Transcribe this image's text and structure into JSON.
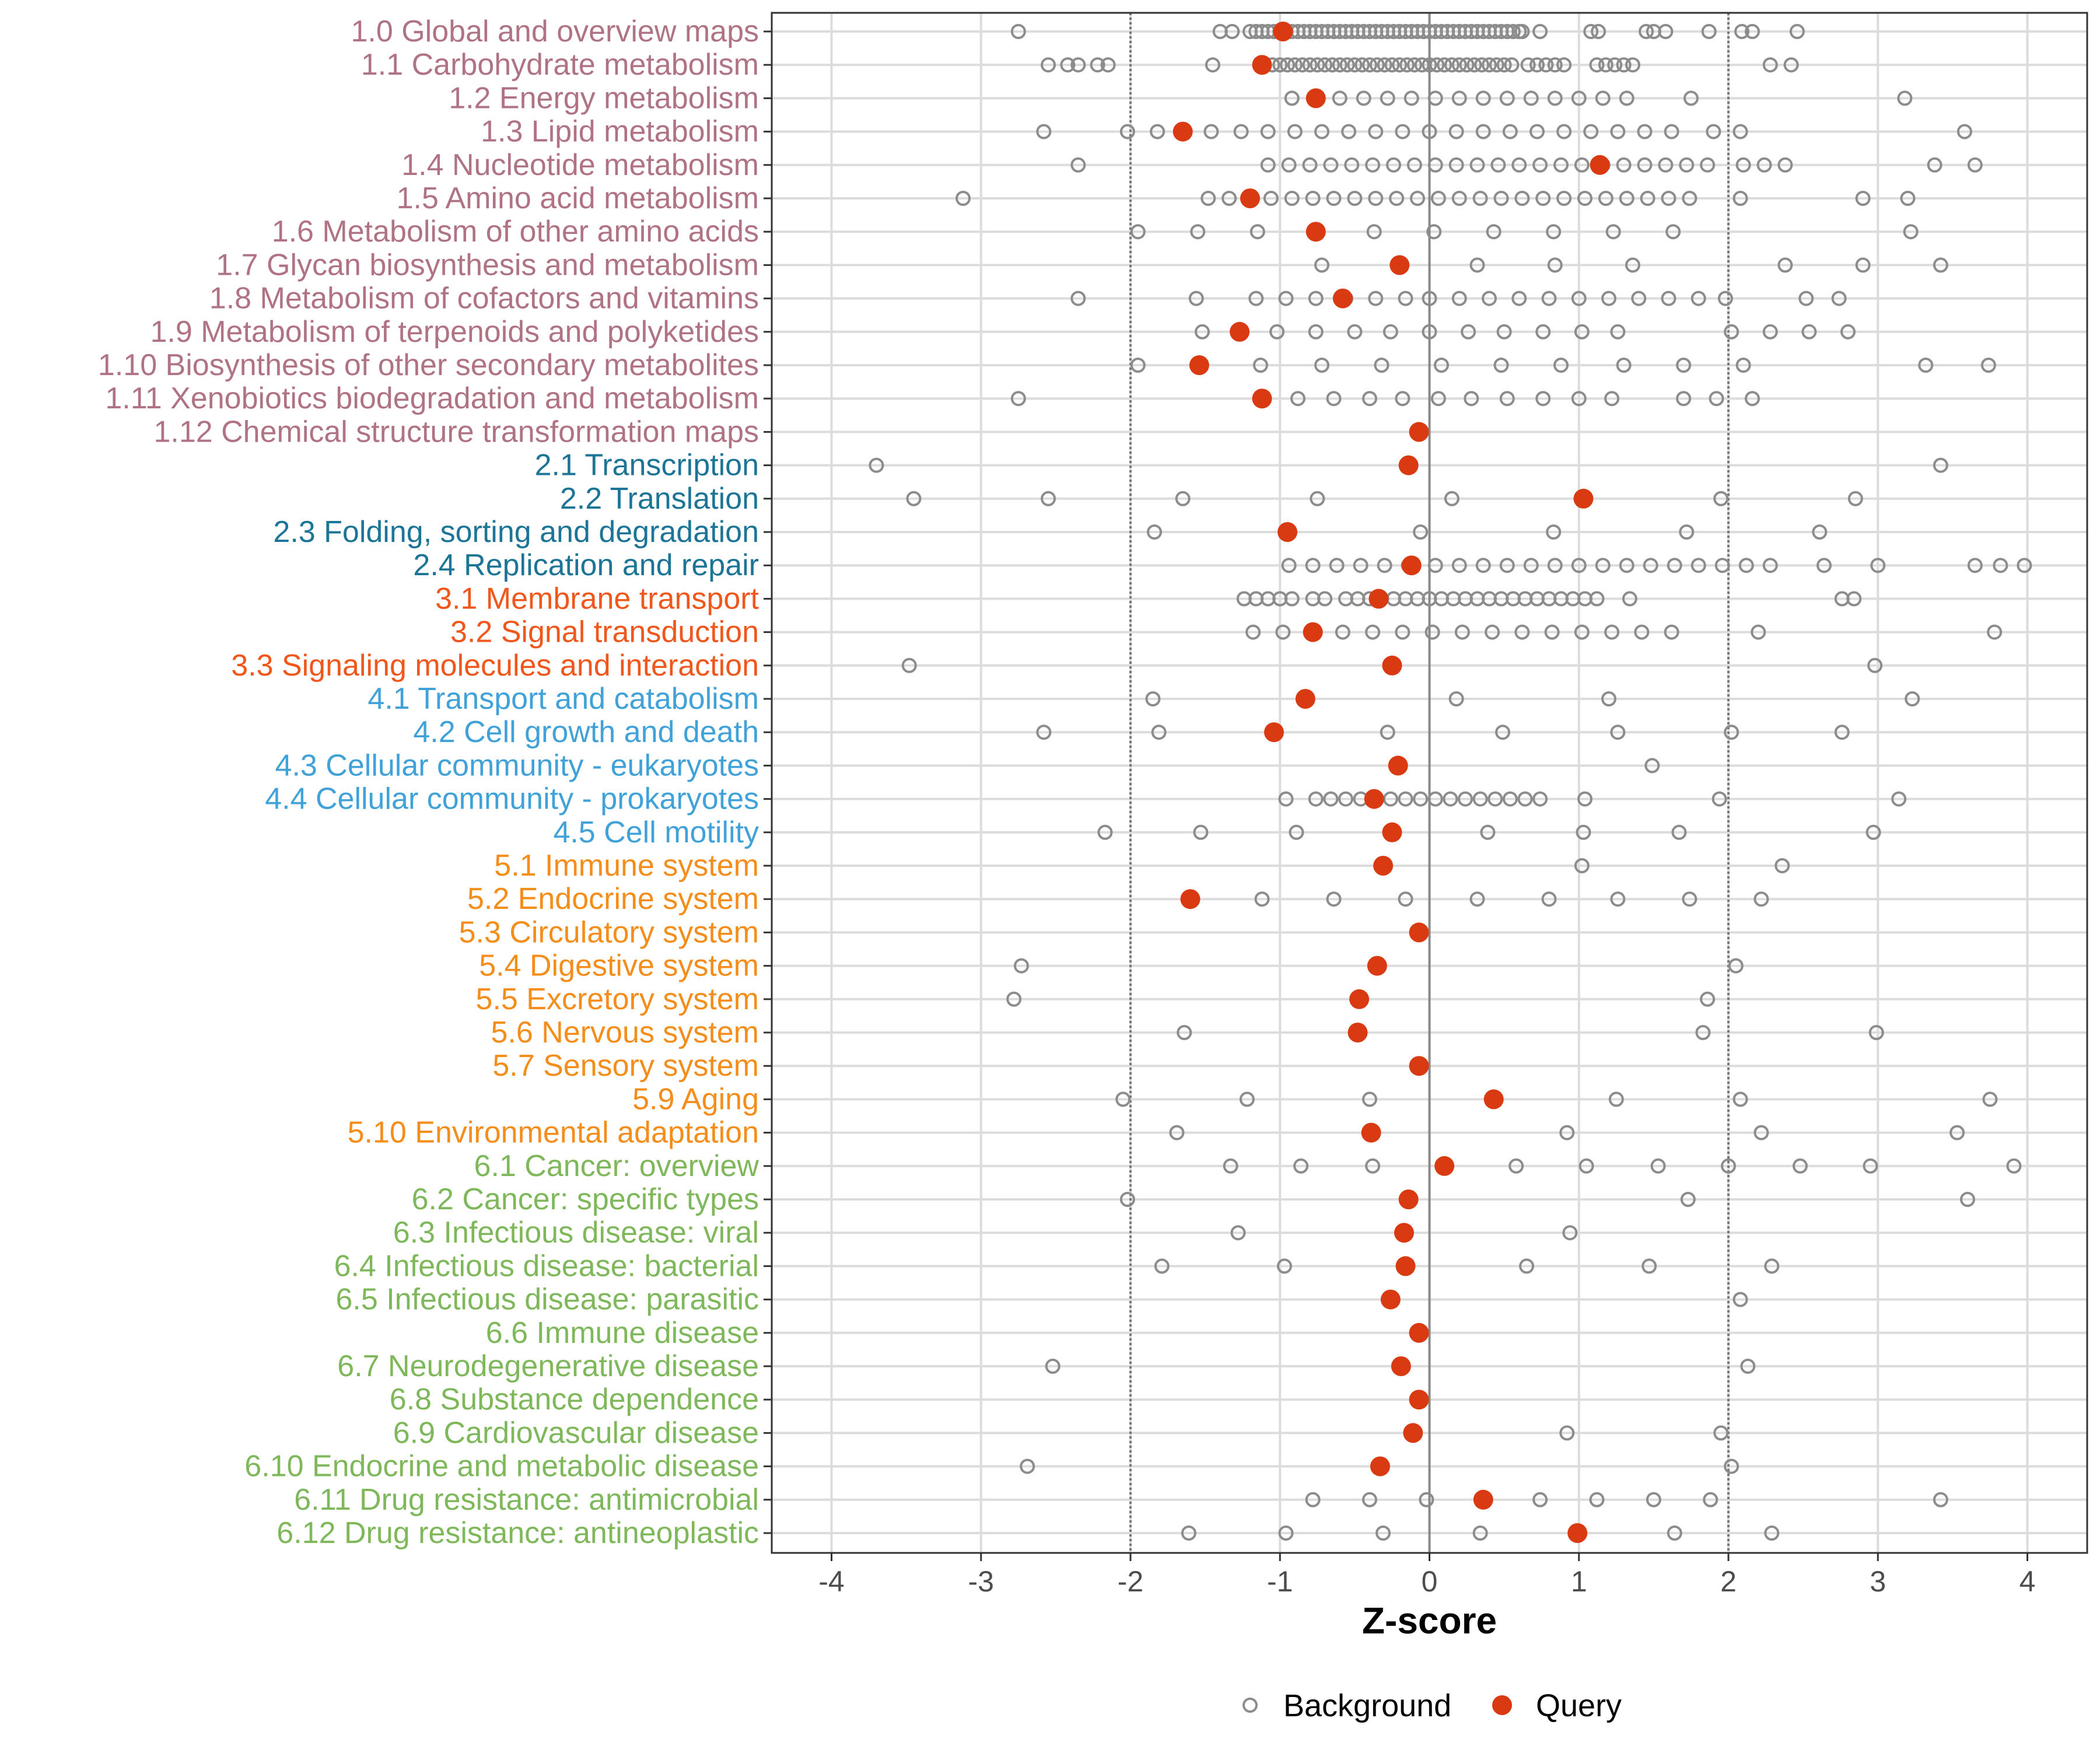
{
  "chart_data": {
    "type": "scatter",
    "xlabel": "Z-score",
    "xlim": [
      -4.4,
      4.4
    ],
    "xticks": [
      -4,
      -3,
      -2,
      -1,
      0,
      1,
      2,
      3,
      4
    ],
    "xtick_labels": [
      "-4",
      "-3",
      "-2",
      "-1",
      "0",
      "1",
      "2",
      "3",
      "4"
    ],
    "reference_lines": [
      -2,
      0,
      2
    ],
    "legend": [
      {
        "name": "Background",
        "marker": "open-circle",
        "color": "#8c8c8c"
      },
      {
        "name": "Query",
        "marker": "filled-circle",
        "color": "#d93a11"
      }
    ],
    "group_colors": {
      "1": "#b07384",
      "2": "#1c7596",
      "3": "#f0571c",
      "4": "#40a2d8",
      "5": "#f58d1b",
      "6": "#7eb85a"
    },
    "categories": [
      {
        "label": "1.0 Global and overview maps",
        "group": "1",
        "query": -0.98,
        "background": [
          -2.75,
          -1.4,
          -1.32,
          -1.2,
          -1.16,
          -1.12,
          -1.08,
          -1.04,
          -1.0,
          -0.96,
          -0.92,
          -0.88,
          -0.84,
          -0.8,
          -0.76,
          -0.72,
          -0.68,
          -0.64,
          -0.6,
          -0.56,
          -0.52,
          -0.48,
          -0.44,
          -0.4,
          -0.36,
          -0.32,
          -0.28,
          -0.24,
          -0.2,
          -0.16,
          -0.12,
          -0.08,
          -0.04,
          0.0,
          0.04,
          0.08,
          0.12,
          0.16,
          0.2,
          0.24,
          0.28,
          0.32,
          0.36,
          0.4,
          0.44,
          0.48,
          0.52,
          0.56,
          0.6,
          0.62,
          0.74,
          1.08,
          1.13,
          1.45,
          1.5,
          1.58,
          1.87,
          2.09,
          2.16,
          2.46
        ]
      },
      {
        "label": "1.1 Carbohydrate metabolism",
        "group": "1",
        "query": -1.12,
        "background": [
          -2.55,
          -2.42,
          -2.35,
          -2.22,
          -2.15,
          -1.45,
          -1.05,
          -1.0,
          -0.95,
          -0.9,
          -0.85,
          -0.8,
          -0.75,
          -0.7,
          -0.65,
          -0.6,
          -0.55,
          -0.5,
          -0.45,
          -0.4,
          -0.35,
          -0.3,
          -0.25,
          -0.2,
          -0.15,
          -0.1,
          -0.05,
          0.0,
          0.05,
          0.1,
          0.15,
          0.2,
          0.25,
          0.3,
          0.35,
          0.4,
          0.45,
          0.5,
          0.55,
          0.66,
          0.72,
          0.78,
          0.84,
          0.9,
          1.12,
          1.18,
          1.24,
          1.3,
          1.36,
          2.28,
          2.42
        ]
      },
      {
        "label": "1.2 Energy metabolism",
        "group": "1",
        "query": -0.76,
        "background": [
          -0.92,
          -0.76,
          -0.6,
          -0.44,
          -0.28,
          -0.12,
          0.04,
          0.2,
          0.36,
          0.52,
          0.68,
          0.84,
          1.0,
          1.16,
          1.32,
          1.75,
          3.18
        ]
      },
      {
        "label": "1.3 Lipid metabolism",
        "group": "1",
        "query": -1.65,
        "background": [
          -2.58,
          -2.02,
          -1.82,
          -1.46,
          -1.26,
          -1.08,
          -0.9,
          -0.72,
          -0.54,
          -0.36,
          -0.18,
          0.0,
          0.18,
          0.36,
          0.54,
          0.72,
          0.9,
          1.08,
          1.26,
          1.44,
          1.62,
          1.9,
          2.08,
          3.58
        ]
      },
      {
        "label": "1.4 Nucleotide metabolism",
        "group": "1",
        "query": 1.14,
        "background": [
          -2.35,
          -1.08,
          -0.94,
          -0.8,
          -0.66,
          -0.52,
          -0.38,
          -0.24,
          -0.1,
          0.04,
          0.18,
          0.32,
          0.46,
          0.6,
          0.74,
          0.88,
          1.02,
          1.16,
          1.3,
          1.44,
          1.58,
          1.72,
          1.86,
          2.1,
          2.24,
          2.38,
          3.38,
          3.65
        ]
      },
      {
        "label": "1.5 Amino acid metabolism",
        "group": "1",
        "query": -1.2,
        "background": [
          -3.12,
          -1.48,
          -1.34,
          -1.2,
          -1.06,
          -0.92,
          -0.78,
          -0.64,
          -0.5,
          -0.36,
          -0.22,
          -0.08,
          0.06,
          0.2,
          0.34,
          0.48,
          0.62,
          0.76,
          0.9,
          1.04,
          1.18,
          1.32,
          1.46,
          1.6,
          1.74,
          2.08,
          2.9,
          3.2
        ]
      },
      {
        "label": "1.6 Metabolism of other amino acids",
        "group": "1",
        "query": -0.76,
        "background": [
          -1.95,
          -1.55,
          -1.15,
          -0.75,
          -0.37,
          0.03,
          0.43,
          0.83,
          1.23,
          1.63,
          3.22
        ]
      },
      {
        "label": "1.7 Glycan biosynthesis and metabolism",
        "group": "1",
        "query": -0.2,
        "background": [
          -0.72,
          0.32,
          0.84,
          1.36,
          2.38,
          2.9,
          3.42
        ]
      },
      {
        "label": "1.8 Metabolism of cofactors and vitamins",
        "group": "1",
        "query": -0.58,
        "background": [
          -2.35,
          -1.56,
          -1.16,
          -0.96,
          -0.76,
          -0.56,
          -0.36,
          -0.16,
          0.0,
          0.2,
          0.4,
          0.6,
          0.8,
          1.0,
          1.2,
          1.4,
          1.6,
          1.8,
          1.98,
          2.52,
          2.74
        ]
      },
      {
        "label": "1.9 Metabolism of terpenoids and polyketides",
        "group": "1",
        "query": -1.27,
        "background": [
          -1.52,
          -1.02,
          -0.76,
          -0.5,
          -0.26,
          0.0,
          0.26,
          0.5,
          0.76,
          1.02,
          1.26,
          2.02,
          2.28,
          2.54,
          2.8
        ]
      },
      {
        "label": "1.10 Biosynthesis of other secondary metabolites",
        "group": "1",
        "query": -1.54,
        "background": [
          -1.95,
          -1.13,
          -0.72,
          -0.32,
          0.08,
          0.48,
          0.88,
          1.3,
          1.7,
          2.1,
          3.32,
          3.74
        ]
      },
      {
        "label": "1.11 Xenobiotics biodegradation and metabolism",
        "group": "1",
        "query": -1.12,
        "background": [
          -2.75,
          -0.88,
          -0.64,
          -0.4,
          -0.18,
          0.06,
          0.28,
          0.52,
          0.76,
          1.0,
          1.22,
          1.7,
          1.92,
          2.16
        ]
      },
      {
        "label": "1.12 Chemical structure transformation maps",
        "group": "1",
        "query": -0.07,
        "background": []
      },
      {
        "label": "2.1 Transcription",
        "group": "2",
        "query": -0.14,
        "background": [
          -3.7,
          3.42
        ]
      },
      {
        "label": "2.2 Translation",
        "group": "2",
        "query": 1.03,
        "background": [
          -3.45,
          -2.55,
          -1.65,
          -0.75,
          0.15,
          1.95,
          2.85
        ]
      },
      {
        "label": "2.3 Folding, sorting and degradation",
        "group": "2",
        "query": -0.95,
        "background": [
          -1.84,
          -0.06,
          0.83,
          1.72,
          2.61
        ]
      },
      {
        "label": "2.4 Replication and repair",
        "group": "2",
        "query": -0.12,
        "background": [
          -0.94,
          -0.78,
          -0.62,
          -0.46,
          -0.3,
          -0.14,
          0.04,
          0.2,
          0.36,
          0.52,
          0.68,
          0.84,
          1.0,
          1.16,
          1.32,
          1.48,
          1.64,
          1.8,
          1.96,
          2.12,
          2.28,
          2.64,
          3.0,
          3.65,
          3.82,
          3.98
        ]
      },
      {
        "label": "3.1 Membrane transport",
        "group": "3",
        "query": -0.34,
        "background": [
          -1.24,
          -1.16,
          -1.08,
          -1.0,
          -0.92,
          -0.78,
          -0.7,
          -0.56,
          -0.48,
          -0.4,
          -0.32,
          -0.24,
          -0.16,
          -0.08,
          0.0,
          0.08,
          0.16,
          0.24,
          0.32,
          0.4,
          0.48,
          0.56,
          0.64,
          0.72,
          0.8,
          0.88,
          0.96,
          1.04,
          1.12,
          1.34,
          2.76,
          2.84
        ]
      },
      {
        "label": "3.2 Signal transduction",
        "group": "3",
        "query": -0.78,
        "background": [
          -1.18,
          -0.98,
          -0.78,
          -0.58,
          -0.38,
          -0.18,
          0.02,
          0.22,
          0.42,
          0.62,
          0.82,
          1.02,
          1.22,
          1.42,
          1.62,
          2.2,
          3.78
        ]
      },
      {
        "label": "3.3 Signaling molecules and interaction",
        "group": "3",
        "query": -0.25,
        "background": [
          -3.48,
          2.98
        ]
      },
      {
        "label": "4.1 Transport and catabolism",
        "group": "4",
        "query": -0.83,
        "background": [
          -1.85,
          0.18,
          1.2,
          3.23
        ]
      },
      {
        "label": "4.2 Cell growth and death",
        "group": "4",
        "query": -1.04,
        "background": [
          -2.58,
          -1.81,
          -0.28,
          0.49,
          1.26,
          2.02,
          2.76
        ]
      },
      {
        "label": "4.3 Cellular community - eukaryotes",
        "group": "4",
        "query": -0.21,
        "background": [
          1.49
        ]
      },
      {
        "label": "4.4 Cellular community - prokaryotes",
        "group": "4",
        "query": -0.37,
        "background": [
          -0.96,
          -0.76,
          -0.66,
          -0.56,
          -0.46,
          -0.36,
          -0.26,
          -0.16,
          -0.06,
          0.04,
          0.14,
          0.24,
          0.34,
          0.44,
          0.54,
          0.64,
          0.74,
          1.04,
          1.94,
          3.14
        ]
      },
      {
        "label": "4.5 Cell motility",
        "group": "4",
        "query": -0.25,
        "background": [
          -2.17,
          -1.53,
          -0.89,
          0.39,
          1.03,
          1.67,
          2.97
        ]
      },
      {
        "label": "5.1 Immune system",
        "group": "5",
        "query": -0.31,
        "background": [
          1.02,
          2.36
        ]
      },
      {
        "label": "5.2 Endocrine system",
        "group": "5",
        "query": -1.6,
        "background": [
          -1.12,
          -0.64,
          -0.16,
          0.32,
          0.8,
          1.26,
          1.74,
          2.22
        ]
      },
      {
        "label": "5.3 Circulatory system",
        "group": "5",
        "query": -0.07,
        "background": []
      },
      {
        "label": "5.4 Digestive system",
        "group": "5",
        "query": -0.35,
        "background": [
          -2.73,
          2.05
        ]
      },
      {
        "label": "5.5 Excretory system",
        "group": "5",
        "query": -0.47,
        "background": [
          -2.78,
          1.86
        ]
      },
      {
        "label": "5.6 Nervous system",
        "group": "5",
        "query": -0.48,
        "background": [
          -1.64,
          1.83,
          2.99
        ]
      },
      {
        "label": "5.7 Sensory system",
        "group": "5",
        "query": -0.07,
        "background": []
      },
      {
        "label": "5.9 Aging",
        "group": "5",
        "query": 0.43,
        "background": [
          -2.05,
          -1.22,
          -0.4,
          1.25,
          2.08,
          3.75
        ]
      },
      {
        "label": "5.10 Environmental adaptation",
        "group": "5",
        "query": -0.39,
        "background": [
          -1.69,
          0.92,
          2.22,
          3.53
        ]
      },
      {
        "label": "6.1 Cancer: overview",
        "group": "6",
        "query": 0.1,
        "background": [
          -1.33,
          -0.86,
          -0.38,
          0.58,
          1.05,
          1.53,
          2.0,
          2.48,
          2.95,
          3.91
        ]
      },
      {
        "label": "6.2 Cancer: specific types",
        "group": "6",
        "query": -0.14,
        "background": [
          -2.02,
          1.73,
          3.6
        ]
      },
      {
        "label": "6.3 Infectious disease: viral",
        "group": "6",
        "query": -0.17,
        "background": [
          -1.28,
          0.94
        ]
      },
      {
        "label": "6.4 Infectious disease: bacterial",
        "group": "6",
        "query": -0.16,
        "background": [
          -1.79,
          -0.97,
          0.65,
          1.47,
          2.29
        ]
      },
      {
        "label": "6.5 Infectious disease: parasitic",
        "group": "6",
        "query": -0.26,
        "background": [
          2.08
        ]
      },
      {
        "label": "6.6 Immune disease",
        "group": "6",
        "query": -0.07,
        "background": []
      },
      {
        "label": "6.7 Neurodegenerative disease",
        "group": "6",
        "query": -0.19,
        "background": [
          -2.52,
          2.13
        ]
      },
      {
        "label": "6.8 Substance dependence",
        "group": "6",
        "query": -0.07,
        "background": []
      },
      {
        "label": "6.9 Cardiovascular disease",
        "group": "6",
        "query": -0.11,
        "background": [
          0.92,
          1.95
        ]
      },
      {
        "label": "6.10 Endocrine and metabolic disease",
        "group": "6",
        "query": -0.33,
        "background": [
          -2.69,
          2.02
        ]
      },
      {
        "label": "6.11 Drug resistance: antimicrobial",
        "group": "6",
        "query": 0.36,
        "background": [
          -0.78,
          -0.4,
          -0.02,
          0.74,
          1.12,
          1.5,
          1.88,
          3.42
        ]
      },
      {
        "label": "6.12 Drug resistance: antineoplastic",
        "group": "6",
        "query": 0.99,
        "background": [
          -1.61,
          -0.96,
          -0.31,
          0.34,
          1.64,
          2.29
        ]
      }
    ]
  }
}
